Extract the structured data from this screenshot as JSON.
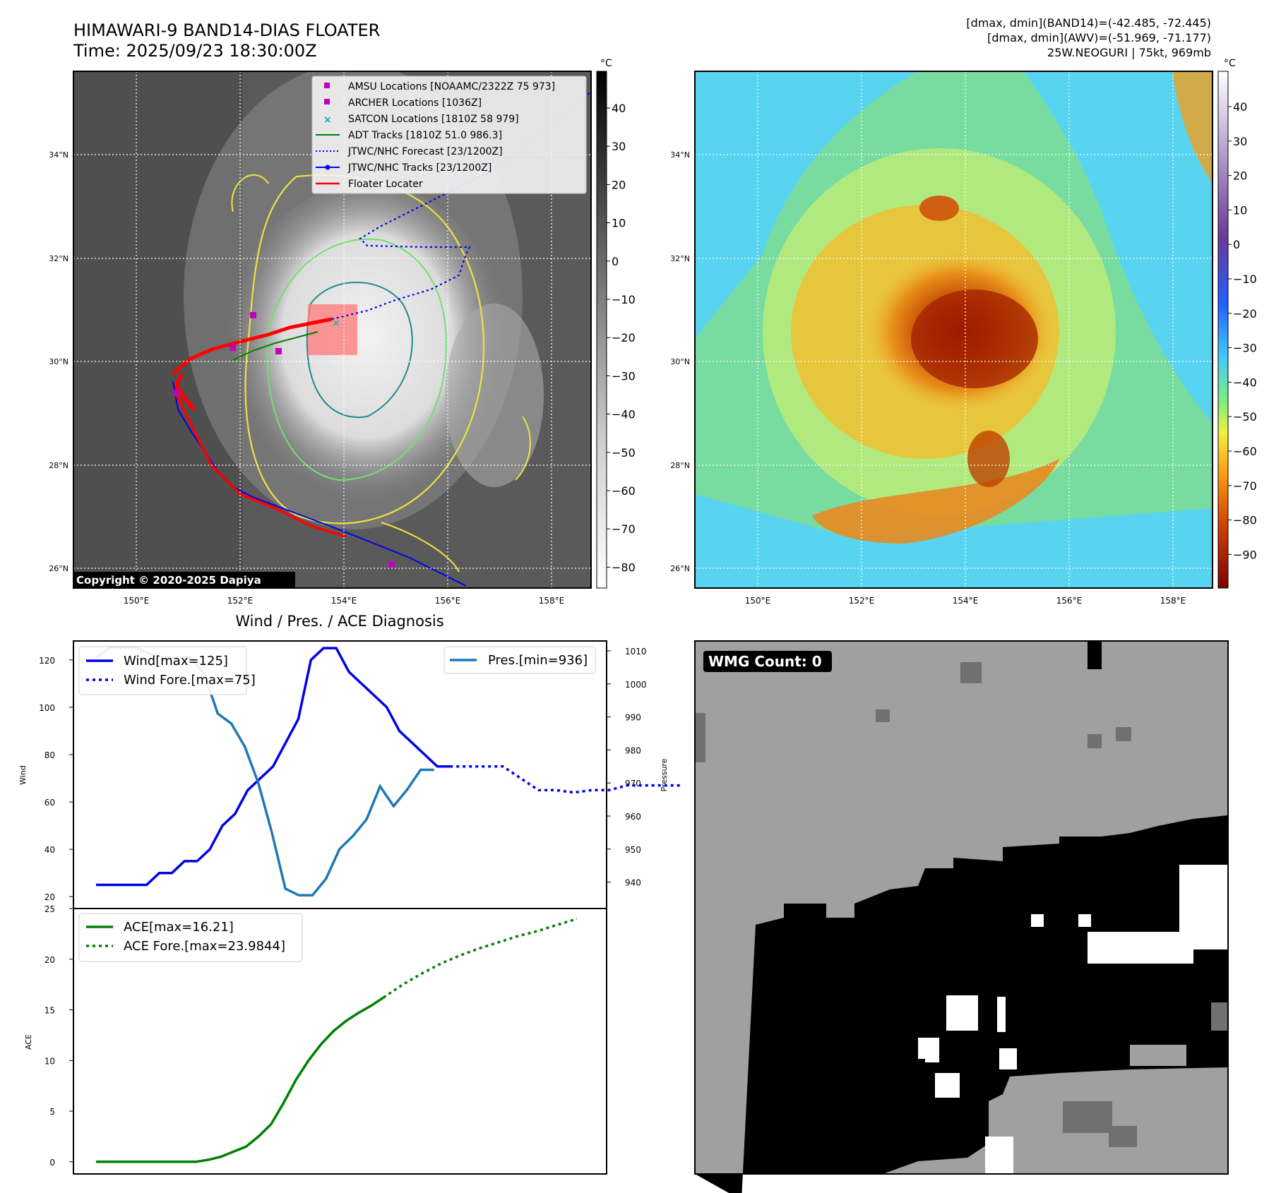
{
  "header": {
    "title": "HIMAWARI-9 BAND14-DIAS FLOATER",
    "time": "Time: 2025/09/23 18:30:00Z",
    "stats_band14": "[dmax, dmin](BAND14)=(-42.485, -72.445)",
    "stats_awv": "[dmax, dmin](AWV)=(-51.969, -71.177)",
    "storm": "25W.NEOGURI | 75kt, 969mb"
  },
  "map": {
    "lat_ticks": [
      "34°N",
      "32°N",
      "30°N",
      "28°N",
      "26°N"
    ],
    "lon_ticks": [
      "150°E",
      "152°E",
      "154°E",
      "156°E",
      "158°E"
    ],
    "copyright": "Copyright © 2020-2025 Dapiya",
    "legend": [
      {
        "label": "AMSU Locations [NOAAMC/2322Z 75 973]",
        "color": "#c000c0",
        "marker": "square"
      },
      {
        "label": "ARCHER Locations [1036Z]",
        "color": "#c000c0",
        "marker": "square"
      },
      {
        "label": "SATCON Locations [1810Z 58 979]",
        "color": "#00b0b0",
        "marker": "x"
      },
      {
        "label": "ADT Tracks [1810Z 51.0 986.3]",
        "color": "#008000",
        "marker": "line"
      },
      {
        "label": "JTWC/NHC Forecast [23/1200Z]",
        "color": "#0000ee",
        "marker": "dotted"
      },
      {
        "label": "JTWC/NHC Tracks [23/1200Z]",
        "color": "#0000ee",
        "marker": "line-dot"
      },
      {
        "label": "Floater Locater",
        "color": "#ff0000",
        "marker": "line"
      }
    ]
  },
  "colorbar_gray": {
    "unit": "°C",
    "ticks": [
      "40",
      "30",
      "20",
      "10",
      "0",
      "−10",
      "−20",
      "−30",
      "−40",
      "−50",
      "−60",
      "−70",
      "−80"
    ]
  },
  "colorbar_color": {
    "unit": "°C",
    "ticks": [
      "40",
      "30",
      "20",
      "10",
      "0",
      "−10",
      "−20",
      "−30",
      "−40",
      "−50",
      "−60",
      "−70",
      "−80",
      "−90"
    ]
  },
  "diagnosis": {
    "title": "Wind / Pres. / ACE Diagnosis",
    "wind_ylabel": "Wind",
    "pres_ylabel": "Pressure",
    "ace_ylabel": "ACE",
    "wind_ticks": [
      "120",
      "100",
      "80",
      "60",
      "40",
      "20"
    ],
    "pres_ticks": [
      "1010",
      "1000",
      "990",
      "980",
      "970",
      "960",
      "950",
      "940"
    ],
    "ace_ticks": [
      "25",
      "20",
      "15",
      "10",
      "5",
      "0"
    ],
    "legend_wind": [
      "Wind[max=125]",
      "Wind Fore.[max=75]"
    ],
    "legend_pres": [
      "Pres.[min=936]"
    ],
    "legend_ace": [
      "ACE[max=16.21]",
      "ACE Fore.[max=23.9844]"
    ]
  },
  "wmg": {
    "label": "WMG Count: 0"
  },
  "chart_data": [
    {
      "type": "line",
      "title": "Wind / Pres. / ACE Diagnosis",
      "ylabel": "Wind",
      "ylim": [
        15,
        128
      ],
      "series": [
        {
          "name": "Wind[max=125]",
          "color": "#0000ee",
          "values": [
            25,
            25,
            25,
            25,
            25,
            30,
            30,
            35,
            35,
            40,
            50,
            55,
            65,
            70,
            75,
            85,
            95,
            120,
            125,
            125,
            115,
            110,
            105,
            100,
            90,
            85,
            80,
            75,
            75
          ]
        },
        {
          "name": "Wind Fore.[max=75]",
          "color": "#0000ee",
          "style": "dotted",
          "values": [
            75,
            75,
            75,
            75,
            70,
            65,
            65,
            64,
            65,
            65,
            67,
            67,
            67,
            67
          ]
        }
      ]
    },
    {
      "type": "line",
      "ylabel": "Pressure",
      "ylim": [
        932,
        1013
      ],
      "series": [
        {
          "name": "Pres.[min=936]",
          "color": "#1f77b4",
          "values": [
            1008,
            1011,
            1011,
            1011,
            1009,
            1008,
            1008,
            1008,
            1003,
            991,
            988,
            981,
            970,
            955,
            938,
            936,
            936,
            941,
            950,
            954,
            959,
            969,
            963,
            968,
            974,
            974
          ]
        }
      ]
    },
    {
      "type": "line",
      "ylabel": "ACE",
      "ylim": [
        -1.2,
        25
      ],
      "series": [
        {
          "name": "ACE[max=16.21]",
          "color": "#008000",
          "values": [
            0,
            0,
            0,
            0,
            0,
            0,
            0,
            0,
            0,
            0.2,
            0.5,
            1.0,
            1.5,
            2.5,
            3.7,
            5.8,
            8.1,
            10.0,
            11.6,
            12.9,
            13.9,
            14.7,
            15.4,
            16.21
          ]
        },
        {
          "name": "ACE Fore.[max=23.9844]",
          "color": "#008000",
          "style": "dotted",
          "values": [
            16.21,
            17.5,
            18.6,
            19.6,
            20.4,
            21.1,
            21.7,
            22.3,
            22.8,
            23.4,
            23.9844
          ]
        }
      ]
    }
  ]
}
